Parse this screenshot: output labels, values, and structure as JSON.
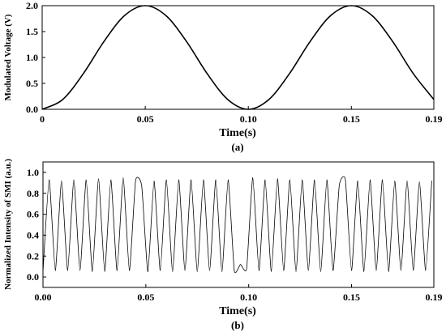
{
  "chart_data": [
    {
      "type": "line",
      "panel_label": "(a)",
      "xlabel": "Time(s)",
      "ylabel": "Modulated Voltage (V)",
      "xlim": [
        0,
        0.19
      ],
      "ylim": [
        0,
        2.0
      ],
      "x_ticks": [
        "0",
        "0.05",
        "0.10",
        "0.15",
        "0.19"
      ],
      "x_tick_values": [
        0,
        0.05,
        0.1,
        0.15,
        0.19
      ],
      "y_ticks": [
        "0.0",
        "0.5",
        "1.0",
        "1.5",
        "2.0"
      ],
      "y_tick_values": [
        0,
        0.5,
        1.0,
        1.5,
        2.0
      ],
      "grid": false,
      "series": [
        {
          "x": [
            0,
            0.01,
            0.02,
            0.03,
            0.04,
            0.05,
            0.06,
            0.07,
            0.08,
            0.09,
            0.1,
            0.11,
            0.12,
            0.13,
            0.14,
            0.15,
            0.16,
            0.17,
            0.18,
            0.19
          ],
          "y": [
            0.0,
            0.19,
            0.69,
            1.31,
            1.81,
            2.0,
            1.81,
            1.31,
            0.69,
            0.19,
            0.0,
            0.19,
            0.69,
            1.31,
            1.81,
            2.0,
            1.81,
            1.31,
            0.69,
            0.19
          ]
        }
      ]
    },
    {
      "type": "line",
      "panel_label": "(b)",
      "xlabel": "Time(s)",
      "ylabel": "Normalized Intensity of SMI (a.u.)",
      "xlim": [
        0,
        0.19
      ],
      "ylim": [
        -0.1,
        1.1
      ],
      "x_ticks": [
        "0.00",
        "0.05",
        "0.10",
        "0.15",
        "0.19"
      ],
      "x_tick_values": [
        0,
        0.05,
        0.1,
        0.15,
        0.19
      ],
      "y_ticks": [
        "0.0",
        "0.2",
        "0.4",
        "0.6",
        "0.8",
        "1.0"
      ],
      "y_tick_values": [
        0,
        0.2,
        0.4,
        0.6,
        0.8,
        1.0
      ],
      "grid": false,
      "series": [
        {
          "x": [
            0,
            0.003,
            0.006,
            0.009,
            0.012,
            0.015,
            0.018,
            0.021,
            0.024,
            0.027,
            0.03,
            0.033,
            0.036,
            0.039,
            0.042,
            0.045,
            0.048,
            0.051,
            0.054,
            0.057,
            0.06,
            0.063,
            0.066,
            0.069,
            0.072,
            0.075,
            0.078,
            0.081,
            0.084,
            0.087,
            0.09,
            0.093,
            0.096,
            0.099,
            0.102,
            0.105,
            0.108,
            0.111,
            0.114,
            0.117,
            0.12,
            0.123,
            0.126,
            0.129,
            0.132,
            0.135,
            0.138,
            0.141,
            0.144,
            0.147,
            0.15,
            0.153,
            0.156,
            0.159,
            0.162,
            0.165,
            0.168,
            0.171,
            0.174,
            0.177,
            0.18,
            0.183,
            0.186,
            0.189
          ],
          "y": [
            0.05,
            0.93,
            0.06,
            0.92,
            0.06,
            0.93,
            0.06,
            0.93,
            0.05,
            0.94,
            0.05,
            0.93,
            0.06,
            0.95,
            0.06,
            0.92,
            0.87,
            0.05,
            0.92,
            0.06,
            0.93,
            0.05,
            0.93,
            0.06,
            0.93,
            0.05,
            0.93,
            0.06,
            0.93,
            0.05,
            0.93,
            0.06,
            0.12,
            0.08,
            0.95,
            0.06,
            0.93,
            0.05,
            0.94,
            0.06,
            0.93,
            0.05,
            0.93,
            0.06,
            0.93,
            0.05,
            0.93,
            0.06,
            0.87,
            0.93,
            0.06,
            0.92,
            0.05,
            0.93,
            0.06,
            0.93,
            0.05,
            0.92,
            0.06,
            0.92,
            0.06,
            0.91,
            0.06,
            0.92
          ]
        }
      ]
    }
  ]
}
